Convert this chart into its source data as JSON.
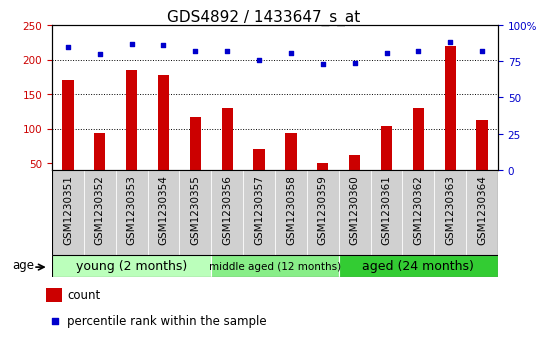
{
  "title": "GDS4892 / 1433647_s_at",
  "samples": [
    "GSM1230351",
    "GSM1230352",
    "GSM1230353",
    "GSM1230354",
    "GSM1230355",
    "GSM1230356",
    "GSM1230357",
    "GSM1230358",
    "GSM1230359",
    "GSM1230360",
    "GSM1230361",
    "GSM1230362",
    "GSM1230363",
    "GSM1230364"
  ],
  "counts": [
    170,
    93,
    185,
    178,
    117,
    130,
    70,
    93,
    50,
    62,
    104,
    130,
    220,
    113
  ],
  "percentiles": [
    85,
    80,
    87,
    86,
    82,
    82,
    76,
    81,
    73,
    74,
    81,
    82,
    88,
    82
  ],
  "ylim_left": [
    40,
    250
  ],
  "ylim_right": [
    0,
    100
  ],
  "yticks_left": [
    50,
    100,
    150,
    200,
    250
  ],
  "yticks_right": [
    0,
    25,
    50,
    75,
    100
  ],
  "bar_color": "#cc0000",
  "dot_color": "#0000cc",
  "grid_color": "#000000",
  "groups": [
    {
      "label": "young (2 months)",
      "start": 0,
      "end": 5,
      "color": "#bbffbb"
    },
    {
      "label": "middle aged (12 months)",
      "start": 5,
      "end": 9,
      "color": "#88ee88"
    },
    {
      "label": "aged (24 months)",
      "start": 9,
      "end": 14,
      "color": "#33cc33"
    }
  ],
  "age_label": "age",
  "legend_count": "count",
  "legend_percentile": "percentile rank within the sample",
  "title_fontsize": 11,
  "tick_fontsize": 7.5,
  "label_fontsize": 8.5,
  "bar_width": 0.35
}
